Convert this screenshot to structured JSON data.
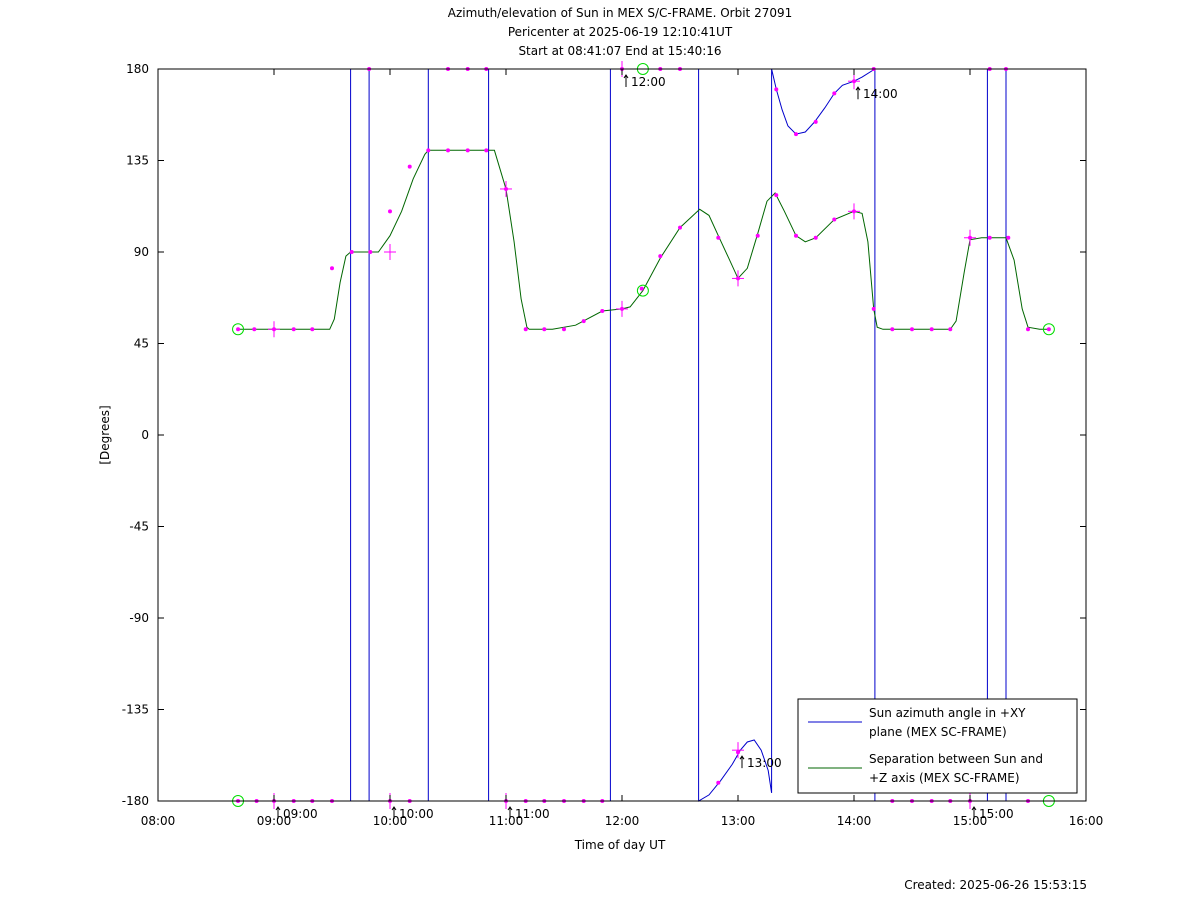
{
  "chart_data": {
    "type": "line",
    "title_lines": [
      "Azimuth/elevation of Sun in MEX S/C-FRAME.  Orbit 27091",
      "Pericenter at 2025-06-19 12:10:41UT",
      "Start at 08:41:07 End at 15:40:16"
    ],
    "xlabel": "Time of day UT",
    "ylabel": "[Degrees]",
    "xlim": [
      8,
      16
    ],
    "ylim": [
      -180,
      180
    ],
    "x_ticks": [
      {
        "v": 8,
        "label": "08:00"
      },
      {
        "v": 9,
        "label": "09:00"
      },
      {
        "v": 10,
        "label": "10:00"
      },
      {
        "v": 11,
        "label": "11:00"
      },
      {
        "v": 12,
        "label": "12:00"
      },
      {
        "v": 13,
        "label": "13:00"
      },
      {
        "v": 14,
        "label": "14:00"
      },
      {
        "v": 15,
        "label": "15:00"
      },
      {
        "v": 16,
        "label": "16:00"
      }
    ],
    "y_ticks": [
      {
        "v": 180,
        "label": "180"
      },
      {
        "v": 135,
        "label": "135"
      },
      {
        "v": 90,
        "label": "90"
      },
      {
        "v": 45,
        "label": "45"
      },
      {
        "v": 0,
        "label": "0"
      },
      {
        "v": -45,
        "label": "-45"
      },
      {
        "v": -90,
        "label": "-90"
      },
      {
        "v": -135,
        "label": "-135"
      },
      {
        "v": -180,
        "label": "-180"
      }
    ],
    "grid": false,
    "legend_position": "bottom-right",
    "series": [
      {
        "name": "Sun azimuth angle in +XY plane (MEX SC-FRAME)",
        "legend_lines": [
          "Sun azimuth angle in +XY",
          "plane (MEX SC-FRAME)"
        ],
        "color": "#0000cc",
        "points": [
          [
            8.69,
            -180
          ],
          [
            9.0,
            -180
          ],
          [
            9.3,
            -180
          ],
          [
            9.5,
            -180
          ],
          [
            9.66,
            -180
          ],
          [
            9.66,
            180
          ],
          [
            9.82,
            180
          ],
          [
            9.82,
            -180
          ],
          [
            10.0,
            -180
          ],
          [
            10.2,
            -180
          ],
          [
            10.33,
            -180
          ],
          [
            10.33,
            180
          ],
          [
            10.5,
            180
          ],
          [
            10.7,
            180
          ],
          [
            10.85,
            180
          ],
          [
            10.85,
            -180
          ],
          [
            11.1,
            -180
          ],
          [
            11.4,
            -180
          ],
          [
            11.7,
            -180
          ],
          [
            11.9,
            -180
          ],
          [
            11.9,
            180
          ],
          [
            12.0,
            180
          ],
          [
            12.2,
            180
          ],
          [
            12.5,
            180
          ],
          [
            12.66,
            180
          ],
          [
            12.66,
            -180
          ],
          [
            12.75,
            -177
          ],
          [
            12.85,
            -170
          ],
          [
            12.95,
            -162
          ],
          [
            13.02,
            -155
          ],
          [
            13.08,
            -151
          ],
          [
            13.14,
            -150
          ],
          [
            13.2,
            -155
          ],
          [
            13.26,
            -165
          ],
          [
            13.29,
            -176
          ],
          [
            13.29,
            180
          ],
          [
            13.33,
            170
          ],
          [
            13.38,
            160
          ],
          [
            13.43,
            152
          ],
          [
            13.5,
            148
          ],
          [
            13.58,
            149
          ],
          [
            13.66,
            154
          ],
          [
            13.75,
            161
          ],
          [
            13.83,
            168
          ],
          [
            13.9,
            172
          ],
          [
            14.0,
            174
          ],
          [
            14.07,
            176
          ],
          [
            14.18,
            180
          ],
          [
            14.18,
            -180
          ],
          [
            14.4,
            -180
          ],
          [
            14.7,
            -180
          ],
          [
            14.95,
            -180
          ],
          [
            15.15,
            -180
          ],
          [
            15.15,
            180
          ],
          [
            15.31,
            180
          ],
          [
            15.31,
            -180
          ],
          [
            15.4,
            -180
          ],
          [
            15.6,
            -180
          ],
          [
            15.68,
            -180
          ]
        ],
        "markers": [
          [
            8.69,
            -180
          ],
          [
            8.85,
            -180
          ],
          [
            9.0,
            -180
          ],
          [
            9.17,
            -180
          ],
          [
            9.33,
            -180
          ],
          [
            9.5,
            -180
          ],
          [
            9.82,
            180
          ],
          [
            10.0,
            -180
          ],
          [
            10.17,
            -180
          ],
          [
            10.5,
            180
          ],
          [
            10.67,
            180
          ],
          [
            10.83,
            180
          ],
          [
            11.0,
            -180
          ],
          [
            11.17,
            -180
          ],
          [
            11.33,
            -180
          ],
          [
            11.5,
            -180
          ],
          [
            11.67,
            -180
          ],
          [
            11.83,
            -180
          ],
          [
            12.0,
            180
          ],
          [
            12.33,
            180
          ],
          [
            12.5,
            180
          ],
          [
            12.83,
            -171
          ],
          [
            13.0,
            -156
          ],
          [
            13.33,
            170
          ],
          [
            13.5,
            148
          ],
          [
            13.67,
            154
          ],
          [
            13.83,
            168
          ],
          [
            14.0,
            174
          ],
          [
            14.17,
            180
          ],
          [
            14.33,
            -180
          ],
          [
            14.5,
            -180
          ],
          [
            14.67,
            -180
          ],
          [
            14.83,
            -180
          ],
          [
            15.0,
            -180
          ],
          [
            15.17,
            180
          ],
          [
            15.31,
            180
          ],
          [
            15.5,
            -180
          ]
        ]
      },
      {
        "name": "Separation between Sun and +Z axis (MEX SC-FRAME)",
        "legend_lines": [
          "Separation between Sun and",
          "+Z axis (MEX SC-FRAME)"
        ],
        "color": "#006600",
        "points": [
          [
            8.69,
            52
          ],
          [
            9.0,
            52
          ],
          [
            9.3,
            52
          ],
          [
            9.48,
            52
          ],
          [
            9.52,
            57
          ],
          [
            9.57,
            75
          ],
          [
            9.62,
            88
          ],
          [
            9.66,
            90
          ],
          [
            9.9,
            90
          ],
          [
            10.0,
            98
          ],
          [
            10.1,
            110
          ],
          [
            10.2,
            126
          ],
          [
            10.3,
            138
          ],
          [
            10.33,
            140
          ],
          [
            10.5,
            140
          ],
          [
            10.67,
            140
          ],
          [
            10.9,
            140
          ],
          [
            11.0,
            121
          ],
          [
            11.07,
            95
          ],
          [
            11.13,
            67
          ],
          [
            11.18,
            53
          ],
          [
            11.2,
            52
          ],
          [
            11.4,
            52
          ],
          [
            11.6,
            54
          ],
          [
            11.83,
            61
          ],
          [
            12.0,
            62
          ],
          [
            12.07,
            63
          ],
          [
            12.18,
            71
          ],
          [
            12.33,
            87
          ],
          [
            12.5,
            102
          ],
          [
            12.67,
            111
          ],
          [
            12.75,
            108
          ],
          [
            12.83,
            98
          ],
          [
            12.92,
            87
          ],
          [
            13.0,
            77
          ],
          [
            13.08,
            82
          ],
          [
            13.17,
            99
          ],
          [
            13.25,
            115
          ],
          [
            13.32,
            119
          ],
          [
            13.4,
            110
          ],
          [
            13.5,
            98
          ],
          [
            13.58,
            95
          ],
          [
            13.67,
            97
          ],
          [
            13.83,
            106
          ],
          [
            14.0,
            110
          ],
          [
            14.07,
            109
          ],
          [
            14.12,
            95
          ],
          [
            14.17,
            62
          ],
          [
            14.2,
            53
          ],
          [
            14.25,
            52
          ],
          [
            14.5,
            52
          ],
          [
            14.83,
            52
          ],
          [
            14.88,
            56
          ],
          [
            14.95,
            80
          ],
          [
            15.0,
            96
          ],
          [
            15.1,
            97
          ],
          [
            15.31,
            97
          ],
          [
            15.38,
            86
          ],
          [
            15.45,
            62
          ],
          [
            15.5,
            53
          ],
          [
            15.6,
            52
          ],
          [
            15.68,
            52
          ]
        ],
        "markers": [
          [
            8.69,
            52
          ],
          [
            8.83,
            52
          ],
          [
            9.0,
            52
          ],
          [
            9.17,
            52
          ],
          [
            9.33,
            52
          ],
          [
            9.5,
            82
          ],
          [
            9.67,
            90
          ],
          [
            9.83,
            90
          ],
          [
            10.0,
            110
          ],
          [
            10.17,
            132
          ],
          [
            10.33,
            140
          ],
          [
            10.5,
            140
          ],
          [
            10.67,
            140
          ],
          [
            10.83,
            140
          ],
          [
            11.0,
            121
          ],
          [
            11.17,
            52
          ],
          [
            11.33,
            52
          ],
          [
            11.5,
            52
          ],
          [
            11.67,
            56
          ],
          [
            11.83,
            61
          ],
          [
            12.0,
            62
          ],
          [
            12.17,
            72
          ],
          [
            12.33,
            88
          ],
          [
            12.5,
            102
          ],
          [
            12.83,
            97
          ],
          [
            13.0,
            77
          ],
          [
            13.17,
            98
          ],
          [
            13.33,
            118
          ],
          [
            13.5,
            98
          ],
          [
            13.67,
            97
          ],
          [
            13.83,
            106
          ],
          [
            14.0,
            110
          ],
          [
            14.17,
            62
          ],
          [
            14.33,
            52
          ],
          [
            14.5,
            52
          ],
          [
            14.67,
            52
          ],
          [
            14.83,
            52
          ],
          [
            15.0,
            97
          ],
          [
            15.17,
            97
          ],
          [
            15.33,
            97
          ],
          [
            15.5,
            52
          ],
          [
            15.68,
            52
          ]
        ]
      }
    ],
    "time_annotations": [
      {
        "x": 9.0,
        "y": -180,
        "label": "09:00"
      },
      {
        "x": 10.0,
        "y": -180,
        "label": "10:00"
      },
      {
        "x": 11.0,
        "y": -180,
        "label": "11:00"
      },
      {
        "x": 12.0,
        "y": 180,
        "label": "12:00"
      },
      {
        "x": 13.0,
        "y": -155,
        "label": "13:00"
      },
      {
        "x": 14.0,
        "y": 174,
        "label": "14:00"
      },
      {
        "x": 15.0,
        "y": -180,
        "label": "15:00"
      }
    ],
    "crosses": [
      [
        9.0,
        -180
      ],
      [
        10.0,
        -180
      ],
      [
        11.0,
        -180
      ],
      [
        12.0,
        180
      ],
      [
        13.0,
        -155
      ],
      [
        14.0,
        174
      ],
      [
        15.0,
        -180
      ],
      [
        9.0,
        52
      ],
      [
        10.0,
        90
      ],
      [
        11.0,
        121
      ],
      [
        12.0,
        62
      ],
      [
        13.0,
        77
      ],
      [
        14.0,
        110
      ],
      [
        15.0,
        97
      ]
    ],
    "circles": [
      [
        8.69,
        -180
      ],
      [
        8.69,
        52
      ],
      [
        12.18,
        180
      ],
      [
        12.18,
        71
      ],
      [
        15.68,
        -180
      ],
      [
        15.68,
        52
      ]
    ],
    "marker_color": "#ff00ff",
    "circle_color": "#00dd00"
  },
  "footer": {
    "created": "Created: 2025-06-26 15:53:15"
  }
}
